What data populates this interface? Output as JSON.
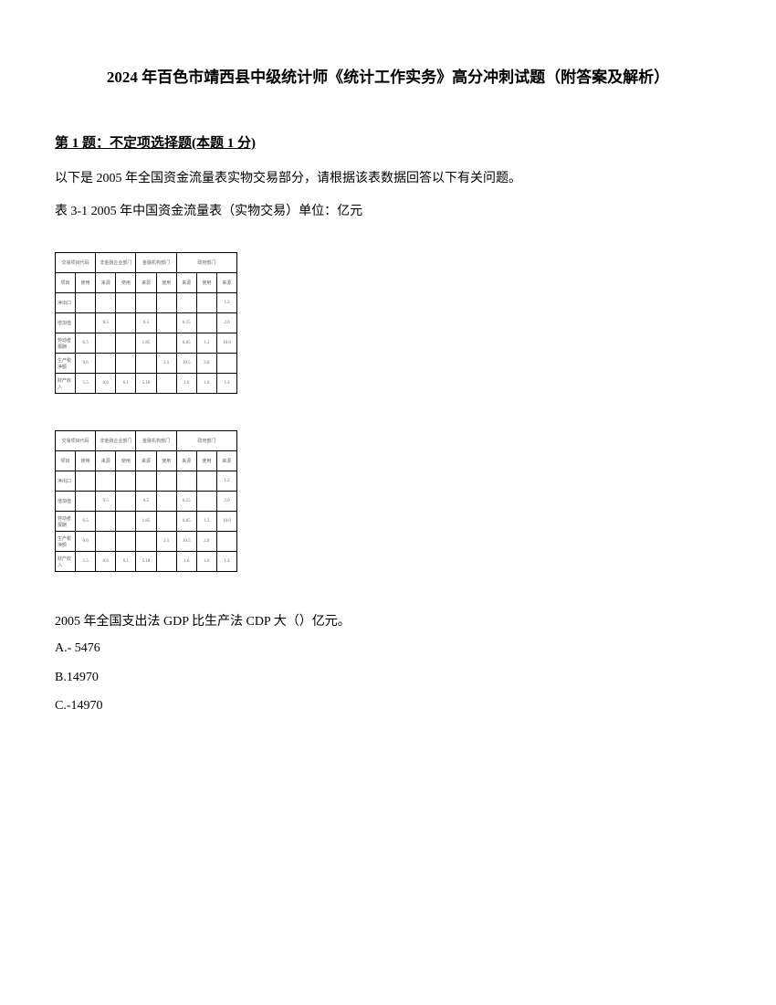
{
  "title": "2024 年百色市靖西县中级统计师《统计工作实务》高分冲刺试题（附答案及解析）",
  "question": {
    "header": "第 1 题：不定项选择题(本题 1 分)",
    "intro": "以下是 2005 年全国资金流量表实物交易部分，请根据该表数据回答以下有关问题。",
    "tableCaption": "表 3-1  2005 年中国资金流量表（实物交易）单位：亿元"
  },
  "table": {
    "headerRow1": [
      "交易项目代码",
      "非金融企业部门",
      "金融机构部门",
      "政府部门"
    ],
    "headerRow2": [
      "项目",
      "使用",
      "来源",
      "使用",
      "来源",
      "使用",
      "来源",
      "使用",
      "来源"
    ],
    "rows": [
      {
        "label": "净出口",
        "cells": [
          "",
          "",
          "",
          "",
          "",
          "",
          "",
          "1.2"
        ]
      },
      {
        "label": "增加值",
        "cells": [
          "",
          "9.5",
          "",
          "6.5",
          "",
          "6.15",
          "",
          "2.0"
        ]
      },
      {
        "label": "劳动者报酬",
        "cells": [
          "6.5",
          "",
          "",
          "1.85",
          "",
          "0.85",
          "1.2",
          "10.6"
        ]
      },
      {
        "label": "生产税净额",
        "cells": [
          "6.6",
          "",
          "",
          "",
          "2.1",
          "10.5",
          "2.8",
          ""
        ]
      },
      {
        "label": "财产收入",
        "cells": [
          "5.5",
          "0.6",
          "6.1",
          "5.18",
          "",
          "1.6",
          "1.6",
          "1.4"
        ]
      }
    ]
  },
  "answerQuestion": "2005 年全国支出法 GDP 比生产法 CDP 大（）亿元。",
  "options": {
    "a": "A.- 5476",
    "b": "B.14970",
    "c": "C.-14970"
  },
  "colors": {
    "text": "#000000",
    "background": "#ffffff",
    "tableBorder": "#000000",
    "tableCellText": "#666666"
  },
  "typography": {
    "titleFontSize": 17,
    "bodyFontSize": 14,
    "tableFontSize": 5,
    "fontFamily": "SimSun"
  }
}
